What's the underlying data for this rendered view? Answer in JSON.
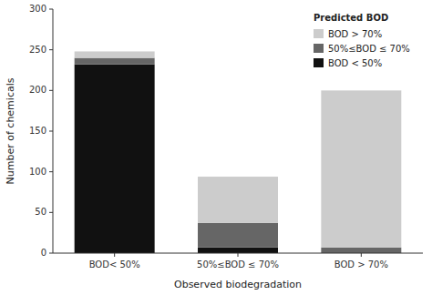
{
  "chart_data": {
    "type": "bar",
    "stacked": true,
    "categories": [
      "BOD< 50%",
      "50%≤BOD ≤ 70%",
      "BOD > 70%"
    ],
    "series": [
      {
        "name": "BOD < 50%",
        "color": "#111111",
        "values": [
          232,
          7,
          0
        ]
      },
      {
        "name": "50%≤BOD ≤ 70%",
        "color": "#666666",
        "values": [
          8,
          30,
          7
        ]
      },
      {
        "name": "BOD > 70%",
        "color": "#cccccc",
        "values": [
          8,
          57,
          193
        ]
      }
    ],
    "legend_title": "Predicted BOD",
    "legend": "upper right",
    "xlabel": "Observed biodegradation",
    "ylabel": "Number of chemicals",
    "ylim": [
      0,
      300
    ],
    "yticks": [
      0,
      50,
      100,
      150,
      200,
      250,
      300
    ],
    "grid": false
  }
}
